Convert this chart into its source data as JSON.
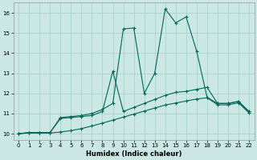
{
  "xlabel": "Humidex (Indice chaleur)",
  "background_color": "#cce8e4",
  "grid_color": "#aad4cc",
  "line_color": "#006655",
  "xlim": [
    -0.5,
    22.5
  ],
  "ylim": [
    9.7,
    16.5
  ],
  "xticks": [
    0,
    1,
    2,
    3,
    4,
    5,
    6,
    7,
    8,
    9,
    10,
    11,
    12,
    13,
    14,
    15,
    16,
    17,
    18,
    19,
    20,
    21,
    22
  ],
  "yticks": [
    10,
    11,
    12,
    13,
    14,
    15,
    16
  ],
  "line1_x": [
    0,
    1,
    2,
    3,
    4,
    5,
    6,
    7,
    8,
    9,
    10,
    11,
    12,
    13,
    14,
    15,
    16,
    17,
    18,
    19,
    20,
    21,
    22
  ],
  "line1_y": [
    10.0,
    10.05,
    10.05,
    10.05,
    10.8,
    10.85,
    10.9,
    11.0,
    11.2,
    11.5,
    15.2,
    15.25,
    12.0,
    13.0,
    16.2,
    15.5,
    15.8,
    14.1,
    11.8,
    11.5,
    11.5,
    11.6,
    11.1
  ],
  "line2_x": [
    0,
    1,
    2,
    3,
    4,
    5,
    6,
    7,
    8,
    9,
    10,
    11,
    12,
    13,
    14,
    15,
    16,
    17,
    18,
    19,
    20,
    21,
    22
  ],
  "line2_y": [
    10.0,
    10.05,
    10.05,
    10.05,
    10.75,
    10.8,
    10.85,
    10.9,
    11.1,
    13.1,
    11.1,
    11.3,
    11.5,
    11.7,
    11.9,
    12.05,
    12.1,
    12.2,
    12.3,
    11.5,
    11.5,
    11.6,
    11.1
  ],
  "line3_x": [
    0,
    1,
    2,
    3,
    4,
    5,
    6,
    7,
    8,
    9,
    10,
    11,
    12,
    13,
    14,
    15,
    16,
    17,
    18,
    19,
    20,
    21,
    22
  ],
  "line3_y": [
    10.0,
    10.03,
    10.03,
    10.03,
    10.08,
    10.15,
    10.25,
    10.38,
    10.52,
    10.67,
    10.82,
    10.97,
    11.12,
    11.27,
    11.42,
    11.52,
    11.62,
    11.72,
    11.78,
    11.43,
    11.43,
    11.53,
    11.03
  ]
}
